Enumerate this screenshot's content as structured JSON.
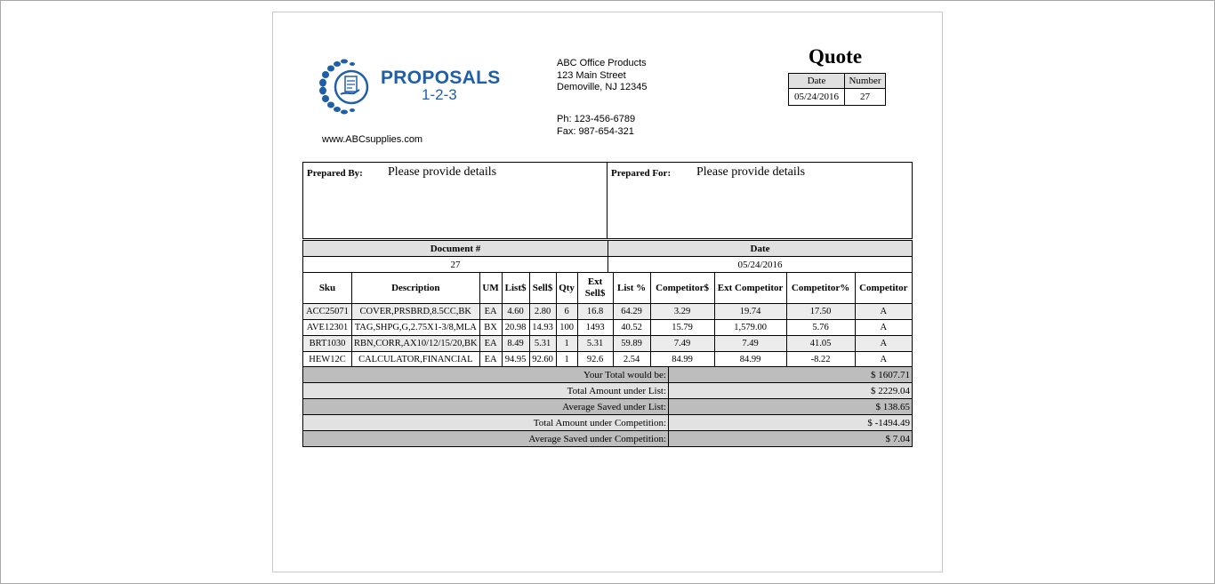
{
  "header": {
    "brand_name": "PROPOSALS",
    "brand_sub": "1-2-3",
    "website": "www.ABCsupplies.com",
    "company": "ABC Office Products",
    "street": "123 Main Street",
    "city": "Demoville, NJ 12345",
    "phone": "Ph: 123-456-6789",
    "fax": "Fax: 987-654-321",
    "doc_title": "Quote",
    "quote_table": {
      "date_label": "Date",
      "number_label": "Number",
      "date": "05/24/2016",
      "number": "27"
    }
  },
  "prepared": {
    "by_label": "Prepared By:",
    "by_value": "Please provide details",
    "for_label": "Prepared For:",
    "for_value": "Please provide details"
  },
  "document": {
    "doc_label": "Document #",
    "doc_value": "27",
    "date_label": "Date",
    "date_value": "05/24/2016"
  },
  "items": {
    "columns": [
      "Sku",
      "Description",
      "UM",
      "List$",
      "Sell$",
      "Qty",
      "Ext Sell$",
      "List %",
      "Competitor$",
      "Ext Competitor",
      "Competitor%",
      "Competitor"
    ],
    "rows": [
      [
        "ACC25071",
        "COVER,PRSBRD,8.5CC,BK",
        "EA",
        "4.60",
        "2.80",
        "6",
        "16.8",
        "64.29",
        "3.29",
        "19.74",
        "17.50",
        "A"
      ],
      [
        "AVE12301",
        "TAG,SHPG,G,2.75X1-3/8,MLA",
        "BX",
        "20.98",
        "14.93",
        "100",
        "1493",
        "40.52",
        "15.79",
        "1,579.00",
        "5.76",
        "A"
      ],
      [
        "BRT1030",
        "RBN,CORR,AX10/12/15/20,BK",
        "EA",
        "8.49",
        "5.31",
        "1",
        "5.31",
        "59.89",
        "7.49",
        "7.49",
        "41.05",
        "A"
      ],
      [
        "HEW12C",
        "CALCULATOR,FINANCIAL",
        "EA",
        "94.95",
        "92.60",
        "1",
        "92.6",
        "2.54",
        "84.99",
        "84.99",
        "-8.22",
        "A"
      ]
    ]
  },
  "summary": [
    {
      "label": "Your Total would be:",
      "value": "$ 1607.71"
    },
    {
      "label": "Total Amount under List:",
      "value": "$ 2229.04"
    },
    {
      "label": "Average Saved under List:",
      "value": "$ 138.65"
    },
    {
      "label": "Total Amount under Competition:",
      "value": "$ -1494.49"
    },
    {
      "label": "Average Saved under Competition:",
      "value": "$ 7.04"
    }
  ],
  "colors": {
    "brand": "#1e5fa8",
    "header_gray": "#e0e0e0",
    "summary_dark": "#bdbdbd",
    "summary_light": "#e2e2e2"
  }
}
